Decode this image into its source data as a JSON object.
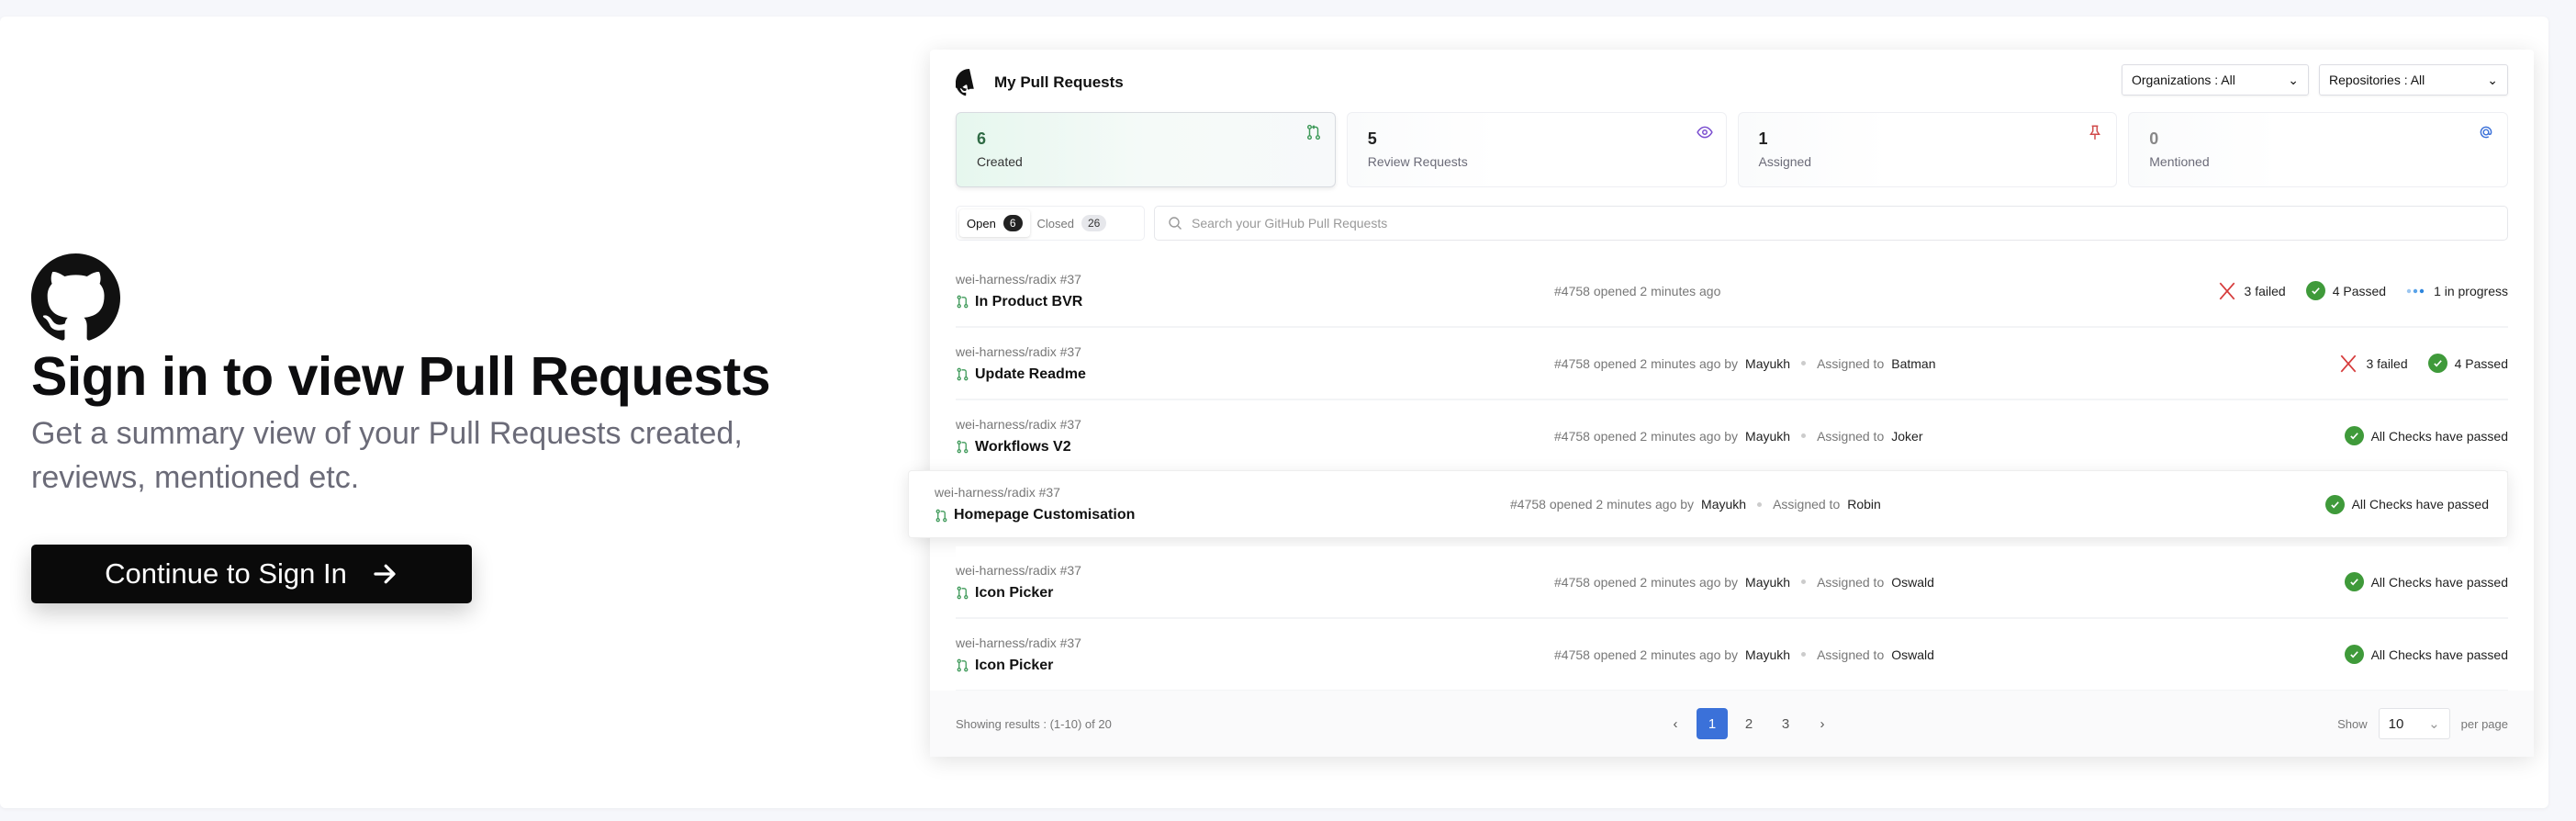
{
  "signin": {
    "title": "Sign in to view Pull Requests",
    "subtitle": "Get a summary view of your Pull Requests created, reviews, mentioned etc.",
    "button_label": "Continue to Sign In"
  },
  "card": {
    "title": "My Pull Requests",
    "org_filter": "Organizations : All",
    "repo_filter": "Repositories : All",
    "stats": [
      {
        "count": "6",
        "label": "Created",
        "icon": "pull-request-icon",
        "color": "#3f9a5a"
      },
      {
        "count": "5",
        "label": "Review Requests",
        "icon": "eye-icon",
        "color": "#7b4fd0"
      },
      {
        "count": "1",
        "label": "Assigned",
        "icon": "pin-icon",
        "color": "#d14b4b"
      },
      {
        "count": "0",
        "label": "Mentioned",
        "icon": "at-icon",
        "color": "#3b71d9"
      }
    ],
    "tabs": [
      {
        "label": "Open",
        "count": "6"
      },
      {
        "label": "Closed",
        "count": "26"
      }
    ],
    "search_placeholder": "Search your GitHub Pull Requests",
    "rows": [
      {
        "repo": "wei-harness/radix #37",
        "title": "In Product BVR",
        "meta": "#4758 opened 2 minutes ago",
        "failed": "3 failed",
        "passed": "4 Passed",
        "progress": "1 in progress"
      },
      {
        "repo": "wei-harness/radix #37",
        "title": "Update Readme",
        "meta": "#4758 opened 2 minutes ago by",
        "author": "Mayukh",
        "assigned_label": "Assigned to",
        "assignee": "Batman",
        "failed": "3 failed",
        "passed": "4 Passed"
      },
      {
        "repo": "wei-harness/radix #37",
        "title": "Workflows V2",
        "meta": "#4758 opened 2 minutes ago by",
        "author": "Mayukh",
        "assigned_label": "Assigned to",
        "assignee": "Joker",
        "passed": "All Checks have passed"
      },
      {
        "repo": "wei-harness/radix #37",
        "title": "Homepage Customisation",
        "meta": "#4758 opened 2 minutes ago by",
        "author": "Mayukh",
        "assigned_label": "Assigned to",
        "assignee": "Robin",
        "passed": "All Checks have passed"
      },
      {
        "repo": "wei-harness/radix #37",
        "title": "Icon Picker",
        "meta": "#4758 opened 2 minutes ago by",
        "author": "Mayukh",
        "assigned_label": "Assigned to",
        "assignee": "Oswald",
        "passed": "All Checks have passed"
      },
      {
        "repo": "wei-harness/radix #37",
        "title": "Icon Picker",
        "meta": "#4758 opened 2 minutes ago by",
        "author": "Mayukh",
        "assigned_label": "Assigned to",
        "assignee": "Oswald",
        "passed": "All Checks have passed"
      }
    ],
    "footer": {
      "results": "Showing results : (1-10) of 20",
      "pages": [
        "1",
        "2",
        "3"
      ],
      "current_page": "1",
      "show_label": "Show",
      "per_page_value": "10",
      "per_page_label": "per page"
    }
  }
}
